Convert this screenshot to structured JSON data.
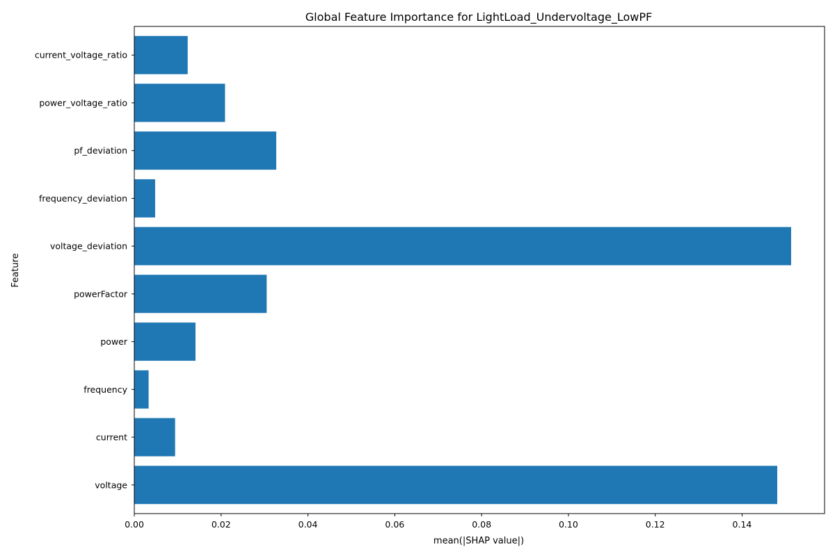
{
  "chart_data": {
    "type": "bar",
    "orientation": "horizontal",
    "title": "Global Feature Importance for LightLoad_Undervoltage_LowPF",
    "xlabel": "mean(|SHAP value|)",
    "ylabel": "Feature",
    "categories": [
      "voltage",
      "current",
      "frequency",
      "power",
      "powerFactor",
      "voltage_deviation",
      "frequency_deviation",
      "pf_deviation",
      "power_voltage_ratio",
      "current_voltage_ratio"
    ],
    "values": [
      0.1481,
      0.0094,
      0.0033,
      0.0141,
      0.0305,
      0.1513,
      0.0048,
      0.0327,
      0.0209,
      0.0123
    ],
    "xlim": [
      0,
      0.159
    ],
    "xticks": [
      0.0,
      0.02,
      0.04,
      0.06,
      0.08,
      0.1,
      0.12,
      0.14
    ],
    "xtick_labels": [
      "0.00",
      "0.02",
      "0.04",
      "0.06",
      "0.08",
      "0.10",
      "0.12",
      "0.14"
    ],
    "bar_color": "#1f77b4",
    "grid": false,
    "legend": false
  }
}
